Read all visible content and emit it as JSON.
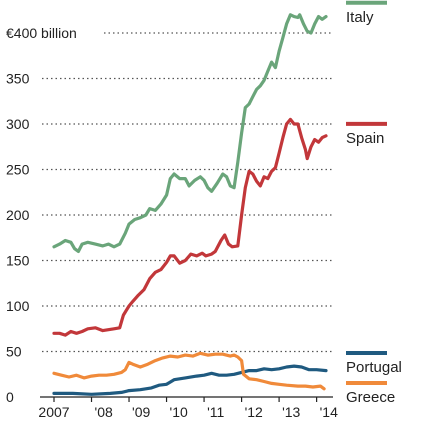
{
  "chart_data": {
    "type": "line",
    "title": "",
    "xlabel": "",
    "ylabel": "",
    "ylim": [
      0,
      420
    ],
    "xlim": [
      2007.0,
      2014.25
    ],
    "grid": true,
    "legend_placement": "right",
    "y_ticks": [
      {
        "value": 0,
        "label": "0"
      },
      {
        "value": 50,
        "label": "50"
      },
      {
        "value": 100,
        "label": "100"
      },
      {
        "value": 150,
        "label": "150"
      },
      {
        "value": 200,
        "label": "200"
      },
      {
        "value": 250,
        "label": "250"
      },
      {
        "value": 300,
        "label": "300"
      },
      {
        "value": 350,
        "label": "350"
      },
      {
        "value": 400,
        "label": "€400 billion"
      }
    ],
    "x_ticks": [
      {
        "value": 2007,
        "label": "2007"
      },
      {
        "value": 2008,
        "label": "'08"
      },
      {
        "value": 2009,
        "label": "'09"
      },
      {
        "value": 2010,
        "label": "'10"
      },
      {
        "value": 2011,
        "label": "'11"
      },
      {
        "value": 2012,
        "label": "'12"
      },
      {
        "value": 2013,
        "label": "'13"
      },
      {
        "value": 2014,
        "label": "'14"
      }
    ],
    "series": [
      {
        "name": "Italy",
        "color": "#6aa57a",
        "legend_at": 420,
        "points": [
          [
            2007.0,
            165
          ],
          [
            2007.15,
            168
          ],
          [
            2007.3,
            172
          ],
          [
            2007.45,
            170
          ],
          [
            2007.55,
            163
          ],
          [
            2007.65,
            160
          ],
          [
            2007.75,
            168
          ],
          [
            2007.9,
            170
          ],
          [
            2008.1,
            168
          ],
          [
            2008.3,
            166
          ],
          [
            2008.45,
            168
          ],
          [
            2008.6,
            165
          ],
          [
            2008.75,
            168
          ],
          [
            2008.9,
            180
          ],
          [
            2009.0,
            190
          ],
          [
            2009.15,
            195
          ],
          [
            2009.3,
            197
          ],
          [
            2009.45,
            200
          ],
          [
            2009.55,
            207
          ],
          [
            2009.7,
            205
          ],
          [
            2009.85,
            212
          ],
          [
            2010.0,
            222
          ],
          [
            2010.1,
            240
          ],
          [
            2010.2,
            245
          ],
          [
            2010.35,
            240
          ],
          [
            2010.5,
            240
          ],
          [
            2010.6,
            232
          ],
          [
            2010.75,
            238
          ],
          [
            2010.9,
            242
          ],
          [
            2011.0,
            238
          ],
          [
            2011.1,
            230
          ],
          [
            2011.2,
            226
          ],
          [
            2011.35,
            235
          ],
          [
            2011.5,
            245
          ],
          [
            2011.6,
            242
          ],
          [
            2011.7,
            232
          ],
          [
            2011.8,
            230
          ],
          [
            2011.9,
            258
          ],
          [
            2012.0,
            290
          ],
          [
            2012.1,
            318
          ],
          [
            2012.2,
            322
          ],
          [
            2012.3,
            330
          ],
          [
            2012.4,
            338
          ],
          [
            2012.5,
            342
          ],
          [
            2012.6,
            348
          ],
          [
            2012.7,
            358
          ],
          [
            2012.8,
            368
          ],
          [
            2012.9,
            362
          ],
          [
            2013.0,
            380
          ],
          [
            2013.1,
            395
          ],
          [
            2013.2,
            410
          ],
          [
            2013.3,
            420
          ],
          [
            2013.4,
            418
          ],
          [
            2013.5,
            417
          ],
          [
            2013.55,
            420
          ],
          [
            2013.65,
            410
          ],
          [
            2013.75,
            402
          ],
          [
            2013.85,
            400
          ],
          [
            2013.95,
            410
          ],
          [
            2014.05,
            418
          ],
          [
            2014.15,
            415
          ],
          [
            2014.25,
            418
          ]
        ]
      },
      {
        "name": "Spain",
        "color": "#c2373a",
        "legend_at": 287,
        "points": [
          [
            2007.0,
            70
          ],
          [
            2007.15,
            70
          ],
          [
            2007.3,
            68
          ],
          [
            2007.45,
            72
          ],
          [
            2007.6,
            70
          ],
          [
            2007.75,
            72
          ],
          [
            2007.9,
            75
          ],
          [
            2008.1,
            76
          ],
          [
            2008.3,
            73
          ],
          [
            2008.45,
            74
          ],
          [
            2008.6,
            75
          ],
          [
            2008.75,
            76
          ],
          [
            2008.85,
            90
          ],
          [
            2009.0,
            100
          ],
          [
            2009.1,
            105
          ],
          [
            2009.25,
            112
          ],
          [
            2009.4,
            118
          ],
          [
            2009.55,
            130
          ],
          [
            2009.7,
            137
          ],
          [
            2009.85,
            140
          ],
          [
            2010.0,
            148
          ],
          [
            2010.1,
            155
          ],
          [
            2010.2,
            155
          ],
          [
            2010.35,
            147
          ],
          [
            2010.5,
            150
          ],
          [
            2010.65,
            157
          ],
          [
            2010.8,
            155
          ],
          [
            2010.95,
            158
          ],
          [
            2011.05,
            155
          ],
          [
            2011.2,
            157
          ],
          [
            2011.3,
            160
          ],
          [
            2011.45,
            172
          ],
          [
            2011.55,
            178
          ],
          [
            2011.65,
            168
          ],
          [
            2011.75,
            165
          ],
          [
            2011.9,
            166
          ],
          [
            2012.0,
            200
          ],
          [
            2012.1,
            230
          ],
          [
            2012.2,
            248
          ],
          [
            2012.3,
            245
          ],
          [
            2012.4,
            237
          ],
          [
            2012.5,
            232
          ],
          [
            2012.6,
            242
          ],
          [
            2012.7,
            240
          ],
          [
            2012.8,
            248
          ],
          [
            2012.9,
            252
          ],
          [
            2013.0,
            268
          ],
          [
            2013.1,
            285
          ],
          [
            2013.2,
            300
          ],
          [
            2013.3,
            305
          ],
          [
            2013.4,
            300
          ],
          [
            2013.5,
            300
          ],
          [
            2013.6,
            285
          ],
          [
            2013.7,
            272
          ],
          [
            2013.75,
            262
          ],
          [
            2013.85,
            275
          ],
          [
            2013.95,
            283
          ],
          [
            2014.05,
            280
          ],
          [
            2014.15,
            285
          ],
          [
            2014.25,
            287
          ]
        ]
      },
      {
        "name": "Portugal",
        "color": "#1f5a80",
        "legend_at": 29,
        "points": [
          [
            2007.0,
            4
          ],
          [
            2007.5,
            4
          ],
          [
            2008.0,
            3
          ],
          [
            2008.5,
            4
          ],
          [
            2008.8,
            5
          ],
          [
            2009.0,
            7
          ],
          [
            2009.3,
            8
          ],
          [
            2009.6,
            10
          ],
          [
            2009.8,
            13
          ],
          [
            2010.0,
            14
          ],
          [
            2010.2,
            19
          ],
          [
            2010.5,
            21
          ],
          [
            2010.8,
            23
          ],
          [
            2011.0,
            24
          ],
          [
            2011.2,
            26
          ],
          [
            2011.4,
            24
          ],
          [
            2011.6,
            24
          ],
          [
            2011.8,
            25
          ],
          [
            2012.0,
            27
          ],
          [
            2012.2,
            29
          ],
          [
            2012.4,
            29
          ],
          [
            2012.6,
            31
          ],
          [
            2012.8,
            30
          ],
          [
            2013.0,
            31
          ],
          [
            2013.2,
            33
          ],
          [
            2013.4,
            34
          ],
          [
            2013.6,
            33
          ],
          [
            2013.8,
            30
          ],
          [
            2014.0,
            30
          ],
          [
            2014.25,
            29
          ]
        ]
      },
      {
        "name": "Greece",
        "color": "#f08a3a",
        "legend_at": 9,
        "points": [
          [
            2007.0,
            26
          ],
          [
            2007.2,
            24
          ],
          [
            2007.4,
            22
          ],
          [
            2007.6,
            24
          ],
          [
            2007.8,
            21
          ],
          [
            2008.0,
            23
          ],
          [
            2008.2,
            24
          ],
          [
            2008.4,
            24
          ],
          [
            2008.6,
            25
          ],
          [
            2008.8,
            27
          ],
          [
            2008.9,
            30
          ],
          [
            2009.0,
            38
          ],
          [
            2009.1,
            36
          ],
          [
            2009.3,
            33
          ],
          [
            2009.5,
            36
          ],
          [
            2009.7,
            40
          ],
          [
            2009.9,
            43
          ],
          [
            2010.1,
            45
          ],
          [
            2010.3,
            44
          ],
          [
            2010.5,
            46
          ],
          [
            2010.7,
            45
          ],
          [
            2010.9,
            48
          ],
          [
            2011.1,
            46
          ],
          [
            2011.3,
            47
          ],
          [
            2011.5,
            47
          ],
          [
            2011.7,
            45
          ],
          [
            2011.8,
            46
          ],
          [
            2011.9,
            44
          ],
          [
            2012.0,
            40
          ],
          [
            2012.05,
            25
          ],
          [
            2012.2,
            20
          ],
          [
            2012.4,
            19
          ],
          [
            2012.6,
            17
          ],
          [
            2012.8,
            15
          ],
          [
            2013.0,
            14
          ],
          [
            2013.2,
            13
          ],
          [
            2013.5,
            12
          ],
          [
            2013.7,
            12
          ],
          [
            2013.9,
            11
          ],
          [
            2014.1,
            12
          ],
          [
            2014.2,
            9
          ]
        ]
      }
    ]
  }
}
